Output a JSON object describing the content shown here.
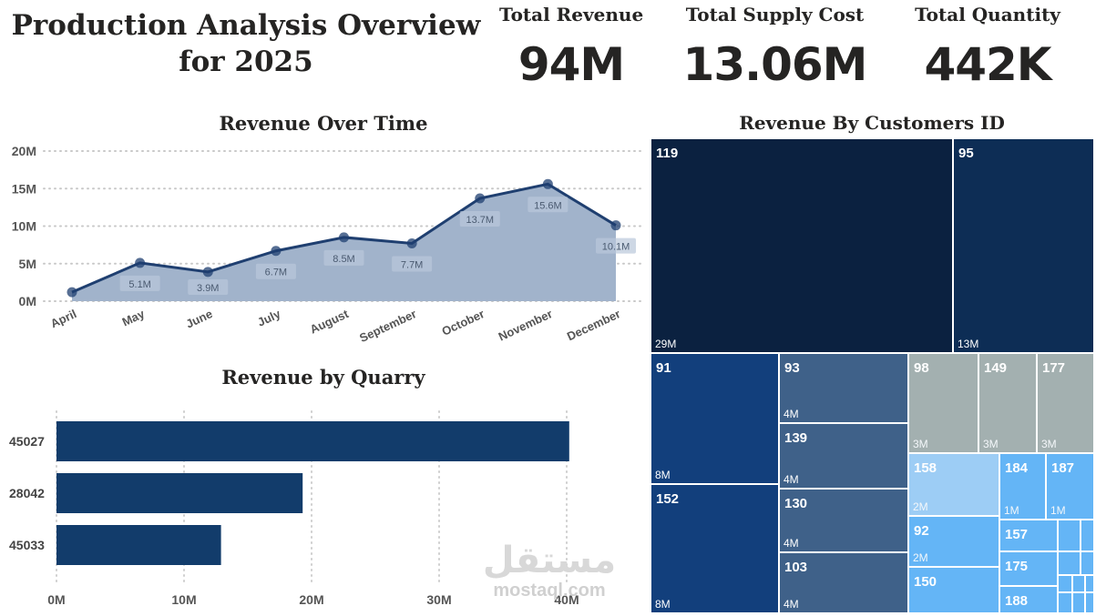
{
  "header": {
    "title_line1": "Production Analysis Overview",
    "title_line2": "for 2025"
  },
  "kpis": [
    {
      "label": "Total Revenue",
      "value": "94M"
    },
    {
      "label": "Total Supply Cost",
      "value": "13.06M"
    },
    {
      "label": "Total Quantity",
      "value": "442K"
    }
  ],
  "watermark": {
    "arabic": "مستقل",
    "latin": "mostaql.com"
  },
  "colors": {
    "line": "#1f3f70",
    "area": "#a1b3cb",
    "bar": "#123c6b",
    "treemap_dark": "#0b2140",
    "treemap_navy": "#0d2d55",
    "treemap_blue": "#123f7c",
    "treemap_slate": "#3f6189",
    "treemap_gray": "#a3b0b0",
    "treemap_light": "#9dcdf5",
    "treemap_sky": "#64b5f6"
  },
  "chart_data": [
    {
      "type": "area",
      "title": "Revenue Over Time",
      "categories": [
        "April",
        "May",
        "June",
        "July",
        "August",
        "September",
        "October",
        "November",
        "December"
      ],
      "values": [
        1.2,
        5.1,
        3.9,
        6.7,
        8.5,
        7.7,
        13.7,
        15.6,
        10.1
      ],
      "data_labels": [
        "",
        "5.1M",
        "3.9M",
        "6.7M",
        "8.5M",
        "7.7M",
        "13.7M",
        "15.6M",
        "10.1M"
      ],
      "yticks": [
        "0M",
        "5M",
        "10M",
        "15M",
        "20M"
      ],
      "ylim": [
        0,
        20
      ],
      "grid": true
    },
    {
      "type": "bar",
      "orientation": "horizontal",
      "title": "Revenue by Quarry",
      "categories": [
        "45027",
        "28042",
        "45033"
      ],
      "values": [
        40.2,
        19.3,
        12.9
      ],
      "xticks": [
        "0M",
        "10M",
        "20M",
        "30M",
        "40M"
      ],
      "xlim": [
        0,
        40
      ],
      "grid": true
    },
    {
      "type": "treemap",
      "title": "Revenue By Customers ID",
      "items": [
        {
          "id": "119",
          "label": "29M",
          "color": "treemap_dark"
        },
        {
          "id": "95",
          "label": "13M",
          "color": "treemap_navy"
        },
        {
          "id": "91",
          "label": "8M",
          "color": "treemap_blue"
        },
        {
          "id": "152",
          "label": "8M",
          "color": "treemap_blue"
        },
        {
          "id": "93",
          "label": "4M",
          "color": "treemap_slate"
        },
        {
          "id": "139",
          "label": "4M",
          "color": "treemap_slate"
        },
        {
          "id": "130",
          "label": "4M",
          "color": "treemap_slate"
        },
        {
          "id": "103",
          "label": "4M",
          "color": "treemap_slate"
        },
        {
          "id": "98",
          "label": "3M",
          "color": "treemap_gray"
        },
        {
          "id": "149",
          "label": "3M",
          "color": "treemap_gray"
        },
        {
          "id": "177",
          "label": "3M",
          "color": "treemap_gray"
        },
        {
          "id": "158",
          "label": "2M",
          "color": "treemap_light"
        },
        {
          "id": "184",
          "label": "1M",
          "color": "treemap_sky"
        },
        {
          "id": "187",
          "label": "1M",
          "color": "treemap_sky"
        },
        {
          "id": "92",
          "label": "2M",
          "color": "treemap_sky"
        },
        {
          "id": "150",
          "label": "",
          "color": "treemap_sky"
        },
        {
          "id": "157",
          "label": "",
          "color": "treemap_sky"
        },
        {
          "id": "175",
          "label": "",
          "color": "treemap_sky"
        },
        {
          "id": "188",
          "label": "",
          "color": "treemap_sky"
        }
      ]
    }
  ]
}
